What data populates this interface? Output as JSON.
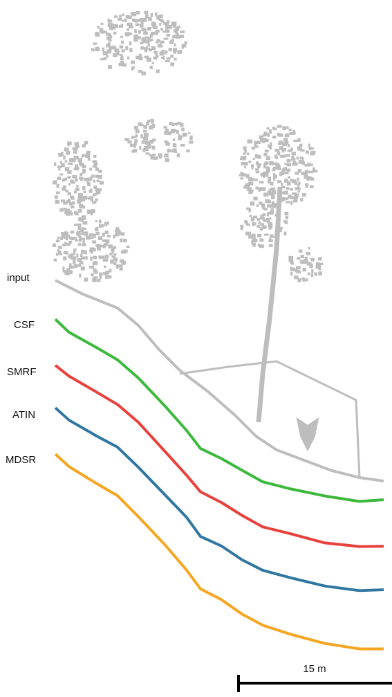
{
  "labels": [
    "input",
    "CSF",
    "SMRF",
    "ATIN",
    "MDSR"
  ],
  "scale_bar": {
    "label": "15 m"
  }
}
